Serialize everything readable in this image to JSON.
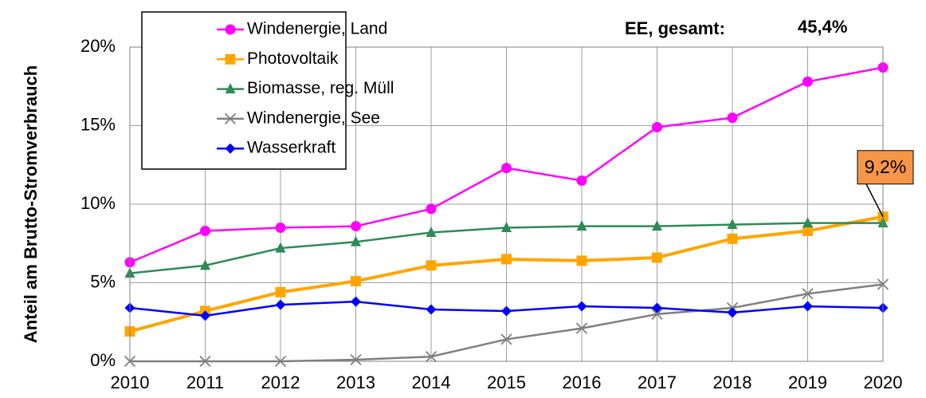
{
  "chart_data": {
    "type": "line",
    "ylabel": "Anteil am Brutto-Stromverbrauch",
    "categories": [
      "2010",
      "2011",
      "2012",
      "2013",
      "2014",
      "2015",
      "2016",
      "2017",
      "2018",
      "2019",
      "2020"
    ],
    "ylim": [
      0,
      20
    ],
    "yticks": [
      {
        "value": 0,
        "label": "0%"
      },
      {
        "value": 5,
        "label": "5%"
      },
      {
        "value": 10,
        "label": "10%"
      },
      {
        "value": 15,
        "label": "15%"
      },
      {
        "value": 20,
        "label": "20%"
      }
    ],
    "grid": true,
    "legend": "upper left",
    "annotations": [
      "EE, gesamt:",
      "45,4%",
      "9,2%"
    ],
    "series": [
      {
        "name": "Windenergie, Land",
        "color": "#ff00ff",
        "marker": "circle",
        "values": [
          6.3,
          8.3,
          8.5,
          8.6,
          9.7,
          12.3,
          11.5,
          14.9,
          15.5,
          17.8,
          18.7
        ]
      },
      {
        "name": "Photovoltaik",
        "color": "#ffa500",
        "marker": "square",
        "values": [
          1.9,
          3.2,
          4.4,
          5.1,
          6.1,
          6.5,
          6.4,
          6.6,
          7.8,
          8.3,
          9.2
        ]
      },
      {
        "name": "Biomasse, reg. Müll",
        "color": "#2e8b57",
        "marker": "triangle",
        "values": [
          5.6,
          6.1,
          7.2,
          7.6,
          8.2,
          8.5,
          8.6,
          8.6,
          8.7,
          8.8,
          8.8
        ]
      },
      {
        "name": "Windenergie, See",
        "color": "#808080",
        "marker": "x",
        "values": [
          0,
          0,
          0,
          0.1,
          0.3,
          1.4,
          2.1,
          3.0,
          3.4,
          4.3,
          4.9
        ]
      },
      {
        "name": "Wasserkraft",
        "color": "#0000ff",
        "marker": "diamond",
        "values": [
          3.4,
          2.9,
          3.6,
          3.8,
          3.3,
          3.2,
          3.5,
          3.4,
          3.1,
          3.5,
          3.4
        ]
      }
    ]
  }
}
